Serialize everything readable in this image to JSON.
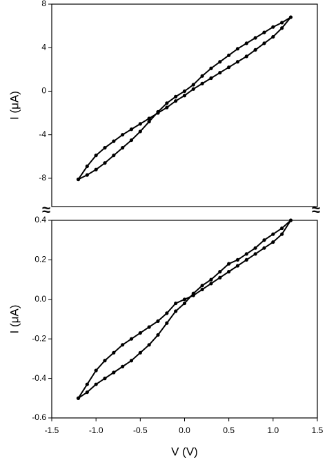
{
  "chart_data": [
    {
      "type": "line",
      "y_label": "I (μA)",
      "x": [
        -1.2,
        -1.1,
        -1.0,
        -0.9,
        -0.8,
        -0.7,
        -0.6,
        -0.5,
        -0.4,
        -0.3,
        -0.2,
        -0.1,
        0.0,
        0.1,
        0.2,
        0.3,
        0.4,
        0.5,
        0.6,
        0.7,
        0.8,
        0.9,
        1.0,
        1.1,
        1.2,
        1.1,
        1.0,
        0.9,
        0.8,
        0.7,
        0.6,
        0.5,
        0.4,
        0.3,
        0.2,
        0.1,
        0.0,
        -0.1,
        -0.2,
        -0.3,
        -0.4,
        -0.5,
        -0.6,
        -0.7,
        -0.8,
        -0.9,
        -1.0,
        -1.1,
        -1.2
      ],
      "values": [
        -8.1,
        -6.9,
        -5.9,
        -5.2,
        -4.6,
        -4.0,
        -3.5,
        -3.0,
        -2.5,
        -2.0,
        -1.5,
        -0.9,
        -0.4,
        0.2,
        0.7,
        1.2,
        1.7,
        2.2,
        2.7,
        3.2,
        3.8,
        4.4,
        5.0,
        5.8,
        6.8,
        6.3,
        5.9,
        5.4,
        4.9,
        4.4,
        3.9,
        3.3,
        2.7,
        2.1,
        1.4,
        0.6,
        0.0,
        -0.5,
        -1.1,
        -1.9,
        -2.8,
        -3.7,
        -4.5,
        -5.2,
        -5.9,
        -6.6,
        -7.2,
        -7.7,
        -8.1
      ],
      "color": "#000000",
      "xlim": [
        -1.5,
        1.5
      ],
      "ylim": [
        -10.6,
        8
      ],
      "yticks": [
        8,
        4,
        0,
        -4,
        -8
      ]
    },
    {
      "type": "line",
      "y_label": "I (μA)",
      "x_label": "V (V)",
      "x": [
        -1.2,
        -1.1,
        -1.0,
        -0.9,
        -0.8,
        -0.7,
        -0.6,
        -0.5,
        -0.4,
        -0.3,
        -0.2,
        -0.1,
        0.0,
        0.1,
        0.2,
        0.3,
        0.4,
        0.5,
        0.6,
        0.7,
        0.8,
        0.9,
        1.0,
        1.1,
        1.2,
        1.1,
        1.0,
        0.9,
        0.8,
        0.7,
        0.6,
        0.5,
        0.4,
        0.3,
        0.2,
        0.1,
        0.0,
        -0.1,
        -0.2,
        -0.3,
        -0.4,
        -0.5,
        -0.6,
        -0.7,
        -0.8,
        -0.9,
        -1.0,
        -1.1,
        -1.2
      ],
      "values": [
        -0.5,
        -0.43,
        -0.36,
        -0.31,
        -0.27,
        -0.23,
        -0.2,
        -0.17,
        -0.14,
        -0.11,
        -0.07,
        -0.02,
        0.0,
        0.02,
        0.05,
        0.08,
        0.11,
        0.14,
        0.17,
        0.2,
        0.23,
        0.26,
        0.29,
        0.33,
        0.4,
        0.36,
        0.33,
        0.3,
        0.26,
        0.23,
        0.2,
        0.18,
        0.14,
        0.1,
        0.07,
        0.03,
        -0.02,
        -0.06,
        -0.12,
        -0.18,
        -0.23,
        -0.27,
        -0.31,
        -0.34,
        -0.37,
        -0.4,
        -0.43,
        -0.47,
        -0.5
      ],
      "color": "#000000",
      "xlim": [
        -1.5,
        1.5
      ],
      "ylim": [
        -0.6,
        0.4
      ],
      "xticks": [
        -1.5,
        {
          "value": -1.0,
          "label": "-1.0"
        },
        -0.5,
        {
          "value": 0.0,
          "label": "0.0"
        },
        0.5,
        {
          "value": 1.0,
          "label": "1.0"
        },
        1.5
      ],
      "yticks": [
        0.4,
        0.2,
        {
          "value": 0.0,
          "label": "0.0"
        },
        -0.2,
        -0.4,
        -0.6
      ]
    }
  ],
  "axis_break_marks": [
    "≈",
    "≈"
  ]
}
